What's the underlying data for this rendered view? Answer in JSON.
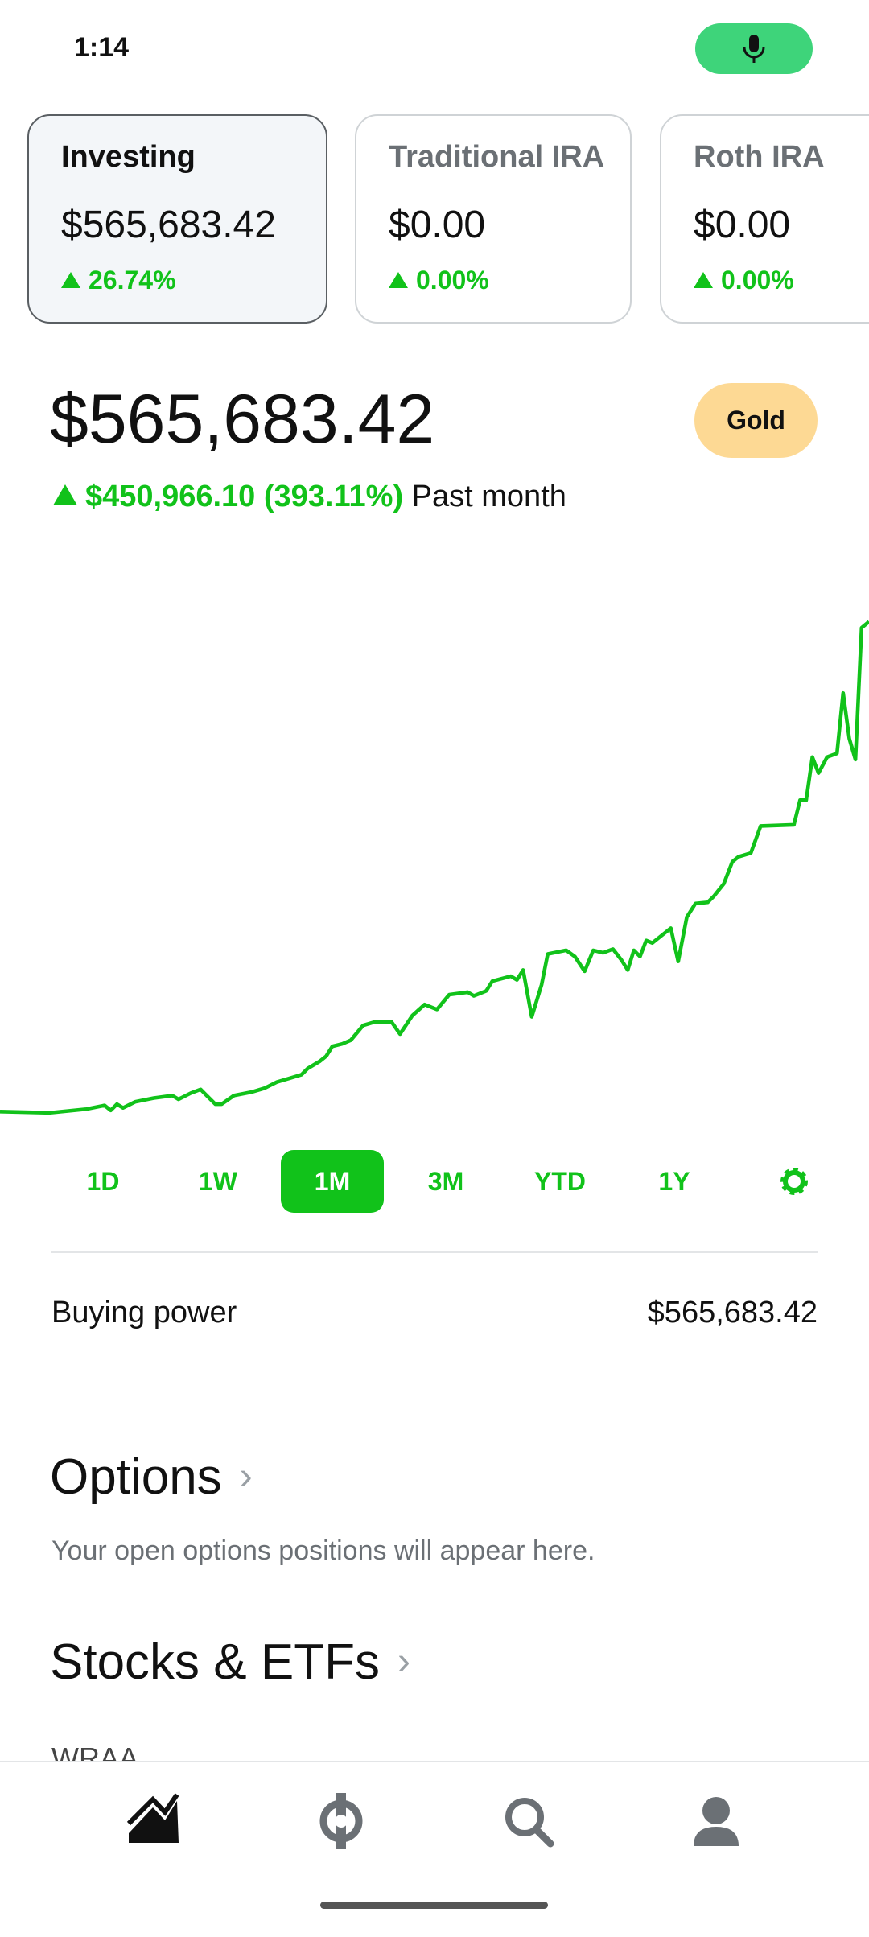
{
  "status_bar": {
    "time": "1:14"
  },
  "accounts": [
    {
      "name": "Investing",
      "value": "$565,683.42",
      "change": "26.74%"
    },
    {
      "name": "Traditional IRA",
      "value": "$0.00",
      "change": "0.00%"
    },
    {
      "name": "Roth IRA",
      "value": "$0.00",
      "change": "0.00%"
    }
  ],
  "portfolio": {
    "value": "$565,683.42",
    "badge": "Gold",
    "change": "$450,966.10 (393.11%)",
    "period": "Past month"
  },
  "ranges": [
    "1D",
    "1W",
    "1M",
    "3M",
    "YTD",
    "1Y"
  ],
  "buying_power": {
    "label": "Buying power",
    "value": "$565,683.42"
  },
  "options": {
    "title": "Options",
    "note": "Your open options positions will appear here."
  },
  "stocks": {
    "title": "Stocks & ETFs",
    "first": "WRAA"
  }
}
